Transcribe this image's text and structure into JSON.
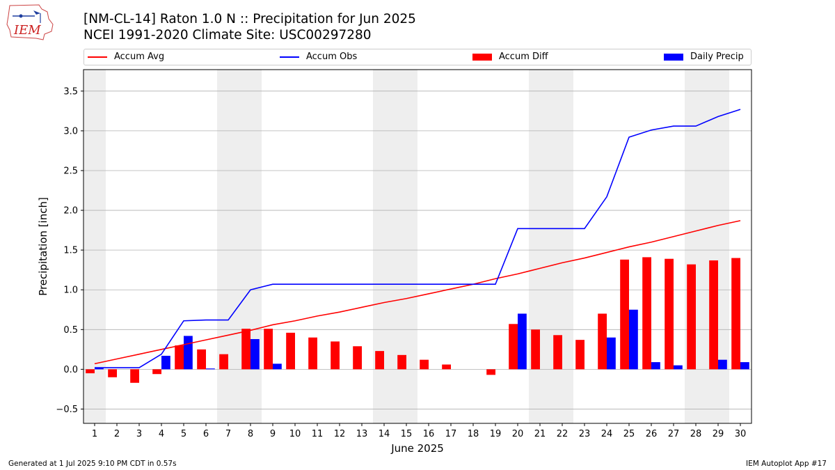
{
  "header": {
    "title_line1": "[NM-CL-14] Raton 1.0 N :: Precipitation for Jun 2025",
    "title_line2": "NCEI 1991-2020 Climate Site: USC00297280",
    "logo_text": "IEM"
  },
  "footer": {
    "generated": "Generated at 1 Jul 2025 9:10 PM CDT in 0.57s",
    "app": "IEM Autoplot App #17"
  },
  "legend": {
    "accum_avg": "Accum Avg",
    "accum_obs": "Accum Obs",
    "accum_diff": "Accum Diff",
    "daily_precip": "Daily Precip"
  },
  "colors": {
    "accum_avg": "#ff0000",
    "accum_obs": "#0000ff",
    "accum_diff": "#ff0000",
    "daily_precip": "#0000ff",
    "weekend_shade": "#eeeeee",
    "grid": "#b0b0b0"
  },
  "chart_data": {
    "type": "bar",
    "xlabel": "June 2025",
    "ylabel": "Precipitation [inch]",
    "xlim": [
      0.5,
      30.5
    ],
    "ylim": [
      -0.68,
      3.77
    ],
    "yticks": [
      -0.5,
      0.0,
      0.5,
      1.0,
      1.5,
      2.0,
      2.5,
      3.0,
      3.5
    ],
    "ytick_labels": [
      "−0.5",
      "0.0",
      "0.5",
      "1.0",
      "1.5",
      "2.0",
      "2.5",
      "3.0",
      "3.5"
    ],
    "grid": "horizontal",
    "legend_position": "top",
    "days": [
      1,
      2,
      3,
      4,
      5,
      6,
      7,
      8,
      9,
      10,
      11,
      12,
      13,
      14,
      15,
      16,
      17,
      18,
      19,
      20,
      21,
      22,
      23,
      24,
      25,
      26,
      27,
      28,
      29,
      30
    ],
    "weekend_days": [
      1,
      7,
      8,
      14,
      15,
      21,
      22,
      28,
      29
    ],
    "series": [
      {
        "name": "Accum Avg",
        "kind": "line",
        "values": [
          0.07,
          0.13,
          0.19,
          0.25,
          0.31,
          0.37,
          0.43,
          0.49,
          0.56,
          0.61,
          0.67,
          0.72,
          0.78,
          0.84,
          0.89,
          0.95,
          1.01,
          1.07,
          1.14,
          1.2,
          1.27,
          1.34,
          1.4,
          1.47,
          1.54,
          1.6,
          1.67,
          1.74,
          1.81,
          1.87
        ]
      },
      {
        "name": "Accum Obs",
        "kind": "line",
        "values": [
          0.02,
          0.02,
          0.02,
          0.19,
          0.61,
          0.62,
          0.62,
          1.0,
          1.07,
          1.07,
          1.07,
          1.07,
          1.07,
          1.07,
          1.07,
          1.07,
          1.07,
          1.07,
          1.07,
          1.77,
          1.77,
          1.77,
          1.77,
          2.17,
          2.92,
          3.01,
          3.06,
          3.06,
          3.18,
          3.27
        ]
      },
      {
        "name": "Accum Diff",
        "kind": "bar",
        "values": [
          -0.05,
          -0.1,
          -0.17,
          -0.06,
          0.3,
          0.25,
          0.19,
          0.51,
          0.51,
          0.46,
          0.4,
          0.35,
          0.29,
          0.23,
          0.18,
          0.12,
          0.06,
          0.0,
          -0.07,
          0.57,
          0.5,
          0.43,
          0.37,
          0.7,
          1.38,
          1.41,
          1.39,
          1.32,
          1.37,
          1.4
        ]
      },
      {
        "name": "Daily Precip",
        "kind": "bar",
        "values": [
          0.02,
          0.0,
          0.0,
          0.17,
          0.42,
          0.01,
          0.0,
          0.38,
          0.07,
          0.0,
          0.0,
          0.0,
          0.0,
          0.0,
          0.0,
          0.0,
          0.0,
          0.0,
          0.0,
          0.7,
          0.0,
          0.0,
          0.0,
          0.4,
          0.75,
          0.09,
          0.05,
          0.0,
          0.12,
          0.09
        ]
      }
    ]
  }
}
